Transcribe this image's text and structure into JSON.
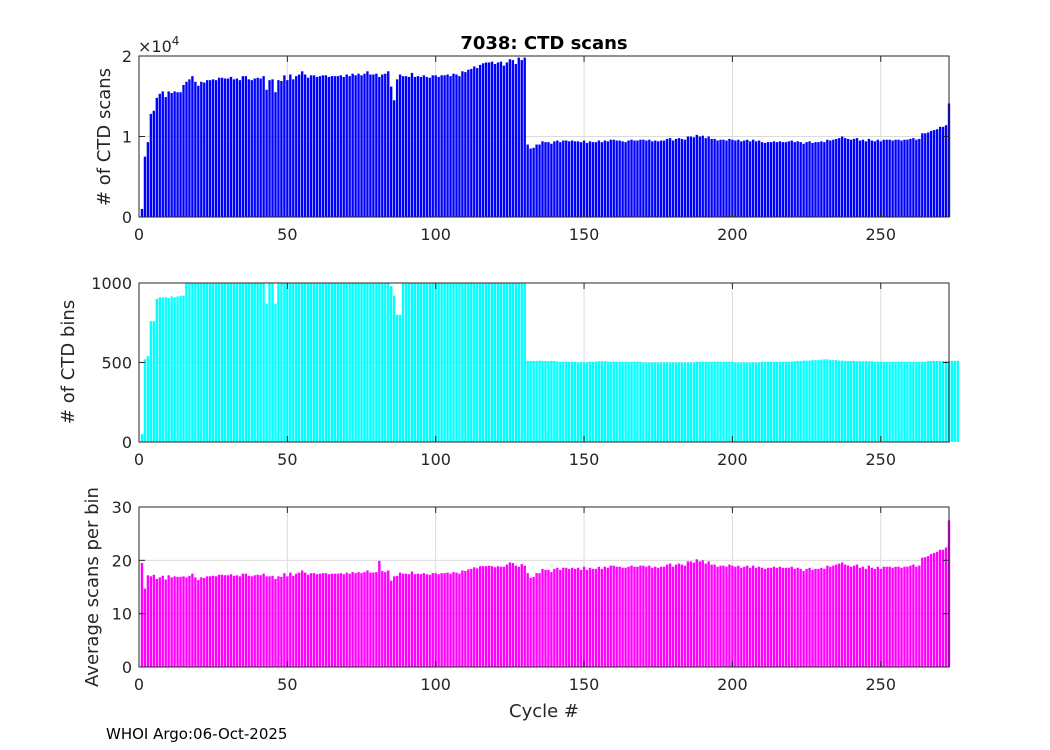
{
  "figure_title": "7038: CTD scans",
  "footer": "WHOI Argo:06-Oct-2025",
  "chart_data": [
    {
      "type": "bar",
      "id": "scans",
      "title": "7038: CTD scans",
      "xlabel": "",
      "ylabel": "# of CTD scans",
      "exponent_label": "×10",
      "exponent_power": "4",
      "color": "#0000ff",
      "x_start": 1,
      "xlim": [
        0,
        273
      ],
      "ylim": [
        0,
        20000
      ],
      "xticks": [
        0,
        50,
        100,
        150,
        200,
        250
      ],
      "yticks": [
        0,
        10000,
        20000
      ],
      "ytick_labels": [
        "0",
        "1",
        "2"
      ],
      "values": [
        1000,
        7500,
        9300,
        12800,
        13200,
        14800,
        15300,
        15600,
        14900,
        15600,
        15400,
        15600,
        15500,
        15500,
        16400,
        16800,
        17100,
        17500,
        16800,
        16300,
        16800,
        16700,
        17000,
        17000,
        17100,
        17000,
        17300,
        17300,
        17200,
        17200,
        17400,
        17100,
        17200,
        17000,
        17500,
        17500,
        17100,
        17000,
        17200,
        17300,
        17200,
        17500,
        15800,
        17000,
        17100,
        15500,
        17000,
        16900,
        17600,
        17000,
        17700,
        17100,
        17500,
        17700,
        18100,
        17700,
        17300,
        17600,
        17600,
        17400,
        17500,
        17600,
        17600,
        17400,
        17500,
        17500,
        17500,
        17600,
        17400,
        17700,
        17500,
        17800,
        17600,
        17800,
        17600,
        17800,
        18100,
        17700,
        17700,
        17800,
        17400,
        17700,
        17800,
        18100,
        16200,
        14500,
        17100,
        17700,
        17500,
        17500,
        17400,
        17900,
        17400,
        17500,
        17400,
        17600,
        17400,
        17300,
        17600,
        17600,
        17400,
        17600,
        17600,
        17700,
        17500,
        17800,
        17700,
        17500,
        18100,
        18000,
        18300,
        18400,
        18700,
        18500,
        18900,
        19100,
        19200,
        19200,
        19300,
        19000,
        19200,
        19300,
        18800,
        19200,
        19600,
        19500,
        19000,
        19800,
        19500,
        19800,
        9000,
        8500,
        8600,
        9000,
        9000,
        9400,
        9300,
        9300,
        9100,
        9400,
        9500,
        9300,
        9500,
        9500,
        9400,
        9500,
        9400,
        9400,
        9300,
        9500,
        9200,
        9400,
        9300,
        9300,
        9500,
        9300,
        9500,
        9400,
        9600,
        9600,
        9500,
        9500,
        9400,
        9300,
        9500,
        9600,
        9500,
        9500,
        9600,
        9600,
        9500,
        9600,
        9400,
        9500,
        9400,
        9500,
        9500,
        9700,
        9800,
        9500,
        9700,
        9800,
        9700,
        9600,
        10000,
        10000,
        9900,
        10200,
        10000,
        10100,
        9800,
        10000,
        9700,
        9700,
        9500,
        9600,
        9600,
        9500,
        9700,
        9600,
        9500,
        9600,
        9400,
        9500,
        9600,
        9400,
        9600,
        9400,
        9500,
        9300,
        9200,
        9300,
        9300,
        9400,
        9300,
        9400,
        9300,
        9300,
        9400,
        9500,
        9300,
        9400,
        9300,
        9100,
        9300,
        9400,
        9200,
        9300,
        9300,
        9400,
        9300,
        9600,
        9500,
        9600,
        9700,
        9800,
        10000,
        9800,
        9700,
        9600,
        9700,
        9800,
        9500,
        9600,
        9400,
        9700,
        9500,
        9400,
        9600,
        9400,
        9600,
        9600,
        9600,
        9500,
        9600,
        9600,
        9500,
        9600,
        9600,
        9700,
        9800,
        9600,
        9700,
        10400,
        10400,
        10500,
        10700,
        10800,
        10900,
        11200,
        11200,
        11400,
        14100
      ]
    },
    {
      "type": "bar",
      "id": "bins",
      "title": "",
      "xlabel": "",
      "ylabel": "# of CTD bins",
      "color": "#00ffff",
      "x_start": 1,
      "xlim": [
        0,
        273
      ],
      "ylim": [
        0,
        1000
      ],
      "xticks": [
        0,
        50,
        100,
        150,
        200,
        250
      ],
      "yticks": [
        0,
        500,
        1000
      ],
      "ytick_labels": [
        "0",
        "500",
        "1000"
      ],
      "values": [
        50,
        520,
        540,
        760,
        760,
        900,
        910,
        910,
        910,
        905,
        915,
        910,
        915,
        920,
        920,
        1000,
        1000,
        1000,
        1000,
        1000,
        1000,
        1000,
        1000,
        1000,
        1000,
        1000,
        1000,
        1000,
        1000,
        1000,
        1000,
        1000,
        1000,
        1000,
        1000,
        1000,
        1000,
        1000,
        1000,
        1000,
        1000,
        1000,
        870,
        1000,
        1000,
        870,
        1000,
        1000,
        1000,
        1000,
        1000,
        1000,
        1000,
        1000,
        1000,
        1000,
        1000,
        1000,
        1000,
        1000,
        1000,
        1000,
        1000,
        1000,
        1000,
        1000,
        1000,
        1000,
        1000,
        1000,
        1000,
        1000,
        1000,
        1000,
        1000,
        1000,
        1000,
        1000,
        1000,
        1000,
        1000,
        1000,
        1000,
        1000,
        980,
        920,
        800,
        800,
        1000,
        1000,
        1000,
        1000,
        1000,
        1000,
        1000,
        1000,
        1000,
        1000,
        1000,
        1000,
        1000,
        1000,
        1000,
        1000,
        1000,
        1000,
        1000,
        1000,
        1000,
        1000,
        1000,
        1000,
        1000,
        1000,
        1000,
        1000,
        1000,
        1000,
        1000,
        1000,
        1000,
        1000,
        1000,
        1000,
        1000,
        1000,
        1000,
        1000,
        1000,
        1000,
        510,
        510,
        510,
        510,
        512,
        510,
        510,
        508,
        510,
        510,
        505,
        505,
        505,
        505,
        505,
        505,
        505,
        500,
        502,
        500,
        502,
        505,
        505,
        505,
        508,
        508,
        508,
        505,
        505,
        505,
        505,
        505,
        505,
        505,
        505,
        505,
        505,
        505,
        505,
        500,
        500,
        500,
        500,
        500,
        500,
        500,
        500,
        500,
        500,
        500,
        500,
        500,
        500,
        500,
        500,
        500,
        500,
        505,
        505,
        505,
        505,
        505,
        505,
        505,
        505,
        505,
        505,
        505,
        505,
        505,
        500,
        500,
        500,
        500,
        500,
        500,
        500,
        500,
        500,
        505,
        505,
        505,
        505,
        505,
        505,
        505,
        505,
        505,
        505,
        505,
        508,
        510,
        510,
        512,
        512,
        512,
        515,
        515,
        515,
        518,
        520,
        520,
        515,
        515,
        515,
        512,
        512,
        510,
        510,
        510,
        510,
        508,
        508,
        508,
        508,
        508,
        508,
        505,
        505,
        505,
        505,
        505,
        505,
        505,
        505,
        505,
        505,
        505,
        505,
        505,
        505,
        505,
        505,
        505,
        505,
        510,
        510,
        510,
        510,
        510,
        510,
        510,
        510,
        510,
        510,
        510
      ]
    },
    {
      "type": "bar",
      "id": "average",
      "title": "",
      "xlabel": "Cycle #",
      "ylabel": "Average scans per bin",
      "color": "#ff00ff",
      "x_start": 1,
      "xlim": [
        0,
        273
      ],
      "ylim": [
        0,
        30
      ],
      "xticks": [
        0,
        50,
        100,
        150,
        200,
        250
      ],
      "yticks": [
        0,
        10,
        20,
        30
      ],
      "ytick_labels": [
        "0",
        "10",
        "20",
        "30"
      ],
      "values": [
        19.5,
        14.7,
        17.2,
        17.0,
        17.3,
        16.5,
        16.8,
        17.1,
        16.4,
        17.2,
        16.8,
        17.0,
        16.9,
        16.9,
        17.0,
        16.8,
        17.1,
        17.5,
        16.8,
        16.3,
        16.8,
        16.7,
        17.0,
        17.0,
        17.1,
        17.0,
        17.3,
        17.3,
        17.2,
        17.2,
        17.4,
        17.1,
        17.2,
        17.0,
        17.5,
        17.5,
        17.1,
        17.0,
        17.2,
        17.3,
        17.2,
        17.5,
        17.0,
        17.0,
        17.1,
        16.5,
        17.0,
        16.9,
        17.6,
        17.0,
        17.7,
        17.1,
        17.5,
        17.7,
        18.1,
        17.7,
        17.3,
        17.6,
        17.6,
        17.4,
        17.5,
        17.6,
        17.6,
        17.4,
        17.5,
        17.5,
        17.5,
        17.6,
        17.4,
        17.7,
        17.5,
        17.8,
        17.6,
        17.8,
        17.6,
        17.8,
        18.1,
        17.7,
        17.7,
        17.8,
        19.9,
        18.0,
        17.8,
        18.1,
        16.2,
        17.0,
        17.1,
        17.7,
        17.5,
        17.5,
        17.4,
        17.9,
        17.4,
        17.5,
        17.4,
        17.6,
        17.4,
        17.3,
        17.6,
        17.6,
        17.4,
        17.6,
        17.6,
        17.7,
        17.5,
        17.8,
        17.7,
        17.5,
        18.1,
        18.0,
        18.3,
        18.4,
        18.7,
        18.5,
        18.9,
        18.9,
        18.9,
        19.0,
        18.9,
        18.7,
        18.9,
        18.8,
        18.8,
        19.2,
        19.6,
        19.5,
        19.0,
        18.8,
        19.3,
        19.0,
        17.6,
        16.7,
        16.9,
        17.6,
        17.6,
        18.4,
        18.2,
        18.2,
        17.8,
        18.4,
        18.6,
        18.2,
        18.6,
        18.6,
        18.4,
        18.6,
        18.4,
        18.6,
        18.2,
        18.8,
        18.2,
        18.6,
        18.4,
        18.4,
        18.8,
        18.4,
        18.8,
        18.6,
        19.0,
        19.0,
        18.8,
        18.8,
        18.6,
        18.6,
        18.8,
        19.0,
        18.8,
        18.8,
        19.0,
        19.0,
        18.8,
        19.0,
        18.6,
        18.8,
        18.6,
        18.8,
        18.8,
        19.2,
        19.4,
        18.8,
        19.2,
        19.4,
        19.2,
        19.0,
        19.8,
        19.8,
        19.6,
        20.2,
        19.8,
        20.0,
        19.4,
        19.8,
        19.2,
        19.2,
        18.8,
        19.0,
        19.0,
        18.8,
        19.2,
        19.0,
        18.8,
        19.0,
        18.6,
        18.8,
        19.0,
        18.6,
        19.0,
        18.6,
        18.8,
        18.6,
        18.4,
        18.6,
        18.6,
        18.8,
        18.6,
        18.8,
        18.6,
        18.6,
        18.6,
        18.8,
        18.4,
        18.6,
        18.4,
        18.0,
        18.4,
        18.6,
        18.2,
        18.4,
        18.4,
        18.6,
        18.4,
        19.0,
        18.8,
        19.0,
        19.2,
        19.4,
        19.6,
        19.2,
        19.0,
        18.8,
        19.0,
        19.2,
        18.6,
        18.8,
        18.4,
        19.0,
        18.6,
        18.4,
        18.8,
        18.4,
        18.8,
        18.8,
        18.8,
        18.6,
        18.8,
        18.8,
        18.6,
        18.8,
        18.8,
        19.0,
        19.2,
        18.8,
        19.0,
        20.5,
        20.6,
        20.8,
        21.2,
        21.4,
        21.6,
        22.0,
        22.0,
        22.4,
        27.5
      ]
    }
  ]
}
